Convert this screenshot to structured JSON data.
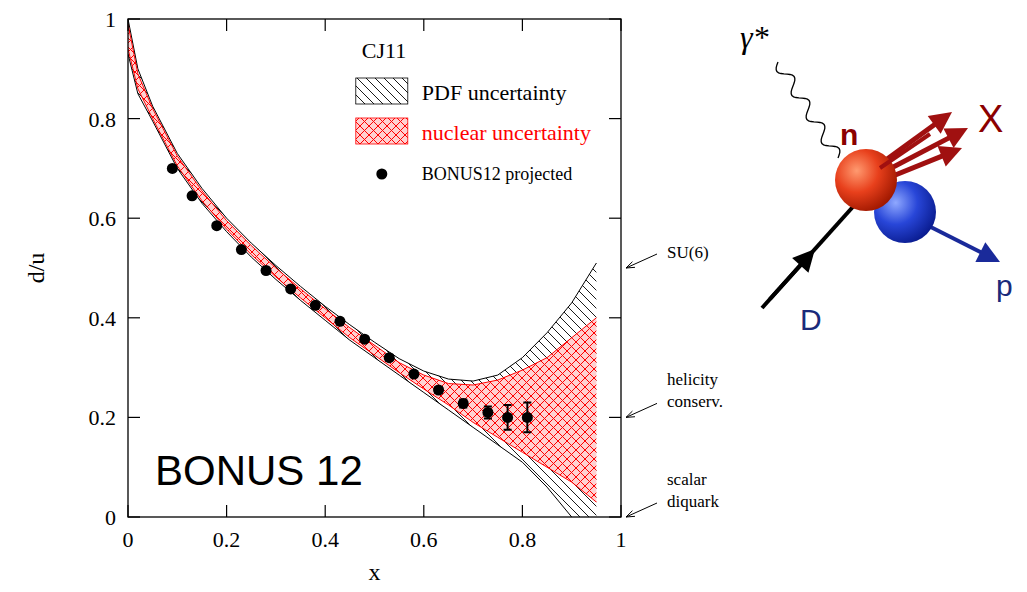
{
  "chart_data": {
    "type": "line",
    "x_label": "x",
    "y_label": "d/u",
    "xlim": [
      0,
      1
    ],
    "ylim": [
      0,
      1
    ],
    "xticks": [
      0,
      0.2,
      0.4,
      0.6,
      0.8,
      1
    ],
    "yticks": [
      0,
      0.2,
      0.4,
      0.6,
      0.8,
      1
    ],
    "grid": false,
    "legend": "upper right",
    "legend_title": "CJ11",
    "plot_label": "BONUS 12",
    "annotations": [
      {
        "lines": [
          "SU(6)"
        ],
        "y": 0.5
      },
      {
        "lines": [
          "helicity",
          "conserv."
        ],
        "y": 0.2
      },
      {
        "lines": [
          "scalar",
          "diquark"
        ],
        "y": 0
      }
    ],
    "series": [
      {
        "name": "PDF uncertainty",
        "type": "area",
        "color": "#000000",
        "line_style": "hatched",
        "x": [
          0,
          0.02,
          0.05,
          0.1,
          0.15,
          0.2,
          0.25,
          0.3,
          0.35,
          0.4,
          0.45,
          0.5,
          0.55,
          0.6,
          0.65,
          0.7,
          0.75,
          0.8,
          0.85,
          0.9,
          0.95
        ],
        "lower": [
          0.93,
          0.85,
          0.795,
          0.7,
          0.63,
          0.573,
          0.522,
          0.477,
          0.435,
          0.395,
          0.355,
          0.32,
          0.285,
          0.25,
          0.215,
          0.18,
          0.145,
          0.11,
          0.06,
          0.0,
          -0.06
        ],
        "upper": [
          1.0,
          0.9,
          0.825,
          0.73,
          0.66,
          0.6,
          0.55,
          0.505,
          0.463,
          0.423,
          0.386,
          0.351,
          0.318,
          0.293,
          0.277,
          0.273,
          0.285,
          0.32,
          0.37,
          0.43,
          0.51
        ]
      },
      {
        "name": "nuclear uncertainty",
        "type": "area",
        "color": "#ff0000",
        "line_style": "crosshatched",
        "x": [
          0,
          0.02,
          0.05,
          0.1,
          0.15,
          0.2,
          0.25,
          0.3,
          0.35,
          0.4,
          0.45,
          0.5,
          0.55,
          0.6,
          0.65,
          0.7,
          0.75,
          0.8,
          0.85,
          0.9,
          0.95
        ],
        "lower": [
          0.94,
          0.86,
          0.8,
          0.705,
          0.635,
          0.578,
          0.527,
          0.482,
          0.44,
          0.4,
          0.36,
          0.325,
          0.29,
          0.257,
          0.225,
          0.19,
          0.16,
          0.13,
          0.1,
          0.07,
          0.03
        ],
        "upper": [
          0.99,
          0.89,
          0.82,
          0.725,
          0.655,
          0.595,
          0.545,
          0.5,
          0.458,
          0.418,
          0.38,
          0.345,
          0.31,
          0.285,
          0.268,
          0.265,
          0.275,
          0.295,
          0.32,
          0.36,
          0.4
        ]
      },
      {
        "name": "BONUS12 projected",
        "type": "scatter",
        "color": "#000000",
        "marker": "circle",
        "x": [
          0.09,
          0.13,
          0.18,
          0.23,
          0.28,
          0.33,
          0.38,
          0.43,
          0.48,
          0.53,
          0.58,
          0.63,
          0.68,
          0.73,
          0.77,
          0.81
        ],
        "values": [
          0.7,
          0.645,
          0.585,
          0.537,
          0.495,
          0.458,
          0.425,
          0.393,
          0.357,
          0.32,
          0.287,
          0.255,
          0.228,
          0.21,
          0.2,
          0.2
        ],
        "errors": [
          0.005,
          0.005,
          0.005,
          0.005,
          0.005,
          0.005,
          0.005,
          0.005,
          0.005,
          0.005,
          0.005,
          0.006,
          0.008,
          0.012,
          0.025,
          0.03
        ]
      }
    ]
  },
  "diagram": {
    "photon": "γ*",
    "neutron": "n",
    "hadrons": "X",
    "deuteron": "D",
    "proton": "p"
  }
}
